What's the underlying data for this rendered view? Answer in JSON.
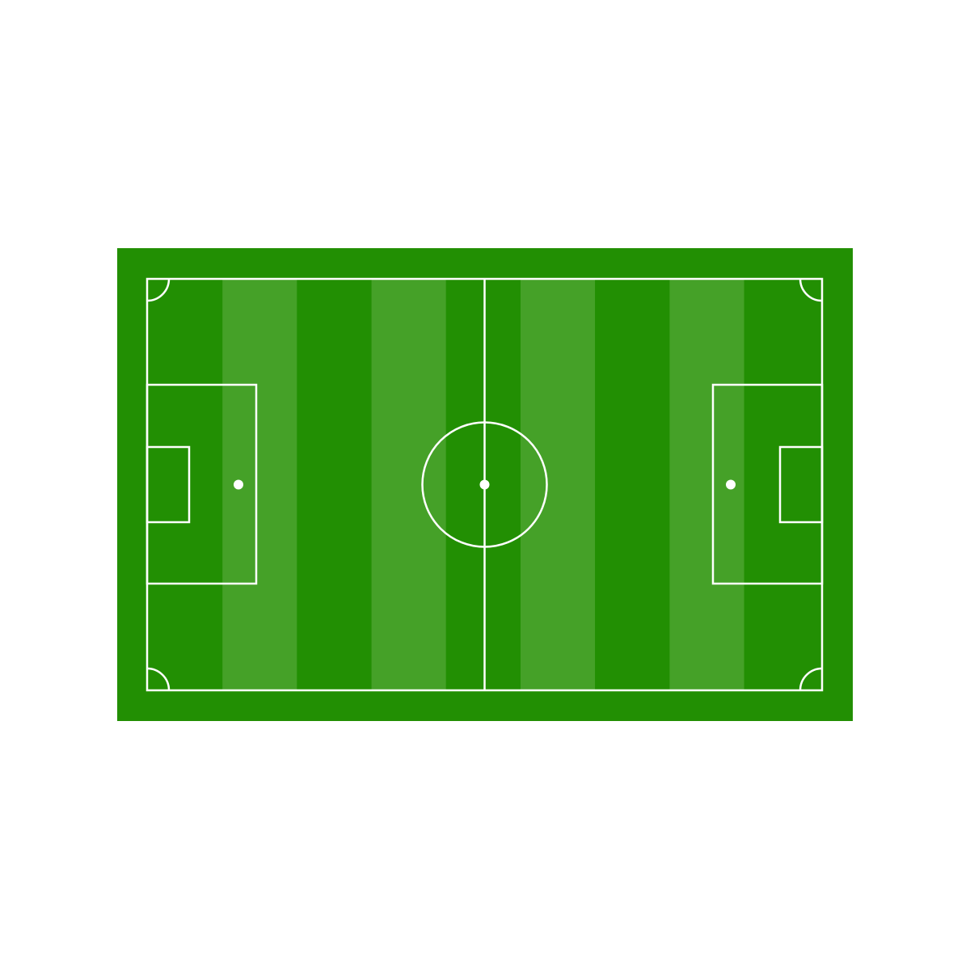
{
  "illustration": {
    "subject": "soccer-pitch",
    "colors": {
      "page_background": "#ffffff",
      "turf_dark": "#228f03",
      "turf_light": "#45a128",
      "line": "#ffffff"
    },
    "stripe_count": 9
  }
}
